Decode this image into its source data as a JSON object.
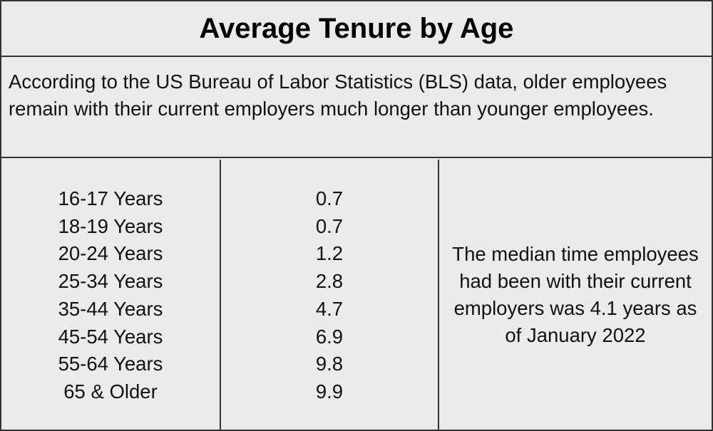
{
  "title": "Average Tenure by Age",
  "intro": "According to the US Bureau of Labor Statistics (BLS) data, older employees remain with their current employers much longer than younger employees.",
  "table": {
    "rows": [
      [
        "16-17 Years",
        "0.7"
      ],
      [
        "18-19 Years",
        "0.7"
      ],
      [
        "20-24 Years",
        "1.2"
      ],
      [
        "25-34 Years",
        "2.8"
      ],
      [
        "35-44 Years",
        "4.7"
      ],
      [
        "45-54 Years",
        "6.9"
      ],
      [
        "55-64 Years",
        "9.8"
      ],
      [
        "65 & Older",
        "9.9"
      ]
    ]
  },
  "note": "The median time employees had been with their current employers was 4.1 years as of January 2022"
}
